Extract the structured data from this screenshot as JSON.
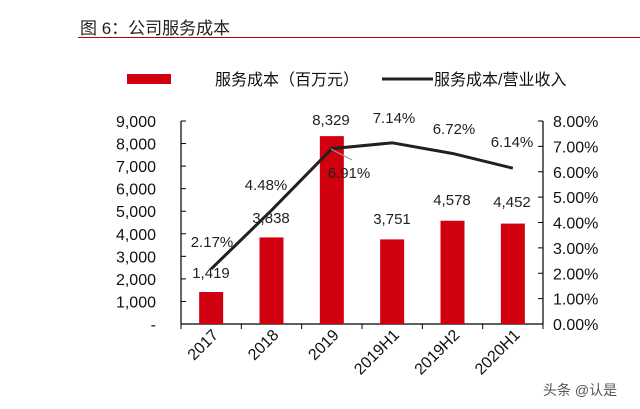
{
  "title": "图 6：公司服务成本",
  "watermark": "头条 @认是",
  "colors": {
    "bar": "#d0000f",
    "line": "#231f20",
    "title_rule": "#c00000"
  },
  "chart_data": {
    "type": "bar+line",
    "title": "图 6：公司服务成本",
    "categories": [
      "2017",
      "2018",
      "2019",
      "2019H1",
      "2019H2",
      "2020H1"
    ],
    "series": [
      {
        "name": "服务成本（百万元）",
        "type": "bar",
        "axis": "left",
        "values": [
          1419,
          3838,
          8329,
          3751,
          4578,
          4452
        ],
        "labels": [
          "1,419",
          "3,838",
          "8,329",
          "3,751",
          "4,578",
          "4,452"
        ]
      },
      {
        "name": "服务成本/营业收入",
        "type": "line",
        "axis": "right",
        "values": [
          2.17,
          4.48,
          6.91,
          7.14,
          6.72,
          6.14
        ],
        "labels": [
          "2.17%",
          "4.48%",
          "6.91%",
          "7.14%",
          "6.72%",
          "6.14%"
        ]
      }
    ],
    "left_axis": {
      "ylim": [
        0,
        9000
      ],
      "ticks": [
        "-",
        "1,000",
        "2,000",
        "3,000",
        "4,000",
        "5,000",
        "6,000",
        "7,000",
        "8,000",
        "9,000"
      ]
    },
    "right_axis": {
      "ylim": [
        0,
        8
      ],
      "ticks": [
        "0.00%",
        "1.00%",
        "2.00%",
        "3.00%",
        "4.00%",
        "5.00%",
        "6.00%",
        "7.00%",
        "8.00%"
      ]
    },
    "grid": false,
    "legend": "top"
  }
}
